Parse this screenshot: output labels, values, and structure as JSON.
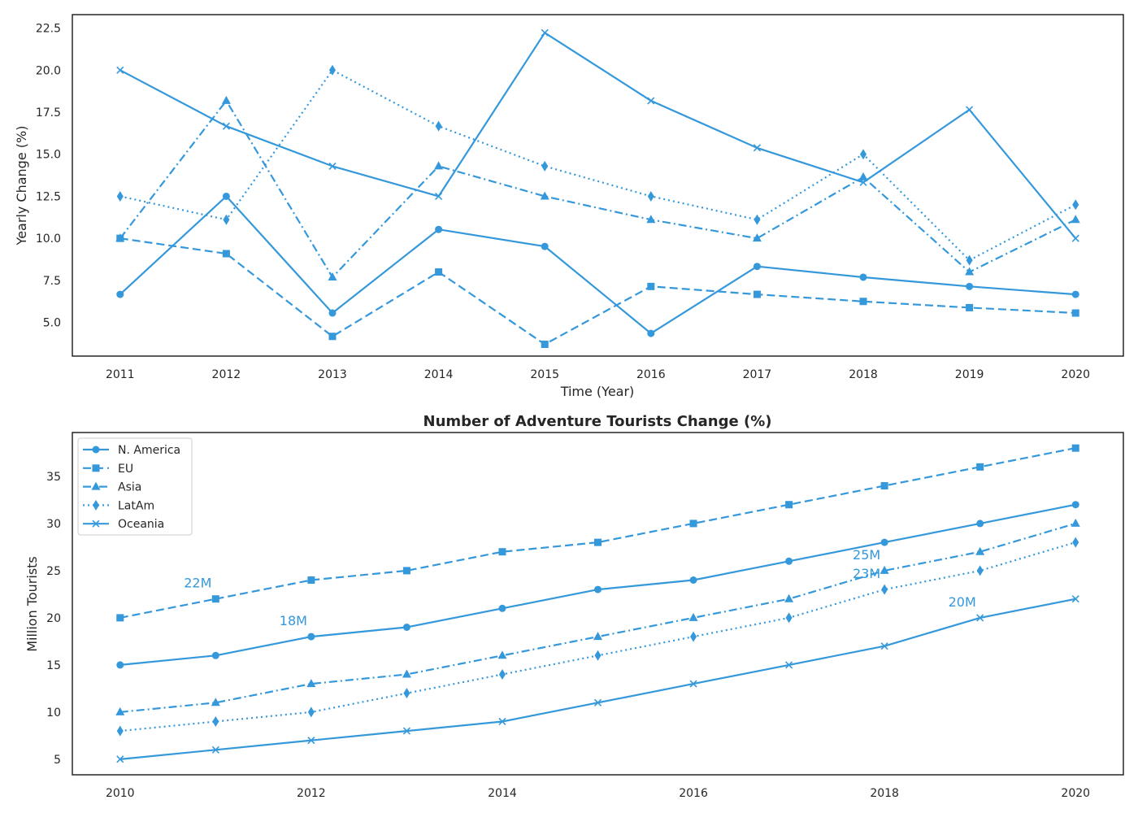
{
  "colors": {
    "line": "#3498db",
    "frame": "#262626",
    "background": "#ffffff"
  },
  "chart_data": [
    {
      "type": "line",
      "title": "",
      "xlabel": "Time (Year)",
      "ylabel": "Yearly Change (%)",
      "x": [
        2011,
        2012,
        2013,
        2014,
        2015,
        2016,
        2017,
        2018,
        2019,
        2020
      ],
      "xlim": [
        2010.55,
        2020.45
      ],
      "ylim": [
        3.0,
        23.3
      ],
      "xticks": [
        2011,
        2012,
        2013,
        2014,
        2015,
        2016,
        2017,
        2018,
        2019,
        2020
      ],
      "yticks": [
        5.0,
        7.5,
        10.0,
        12.5,
        15.0,
        17.5,
        20.0,
        22.5
      ],
      "yticklabels": [
        "5.0",
        "7.5",
        "10.0",
        "12.5",
        "15.0",
        "17.5",
        "20.0",
        "22.5"
      ],
      "grid": false,
      "series": [
        {
          "key": "na",
          "dash": "solid",
          "marker": "circle",
          "values": [
            6.67,
            12.5,
            5.56,
            10.53,
            9.52,
            4.35,
            8.33,
            7.69,
            7.14,
            6.67
          ]
        },
        {
          "key": "eu",
          "dash": "dashed",
          "marker": "square",
          "values": [
            10.0,
            9.09,
            4.17,
            8.0,
            3.7,
            7.14,
            6.67,
            6.25,
            5.88,
            5.56
          ]
        },
        {
          "key": "asia",
          "dash": "dashdot",
          "marker": "triangle",
          "values": [
            10.0,
            18.18,
            7.69,
            14.29,
            12.5,
            11.11,
            10.0,
            13.64,
            8.0,
            11.11
          ]
        },
        {
          "key": "latam",
          "dash": "dotted",
          "marker": "diamond",
          "values": [
            12.5,
            11.11,
            20.0,
            16.67,
            14.29,
            12.5,
            11.11,
            15.0,
            8.7,
            12.0
          ]
        },
        {
          "key": "oceania",
          "dash": "solid",
          "marker": "x",
          "values": [
            20.0,
            16.67,
            14.29,
            12.5,
            22.22,
            18.18,
            15.38,
            13.33,
            17.65,
            10.0
          ]
        }
      ]
    },
    {
      "type": "line",
      "title": "Number of Adventure Tourists Change (%)",
      "xlabel": "",
      "ylabel": "Million Tourists",
      "x": [
        2010,
        2011,
        2012,
        2013,
        2014,
        2015,
        2016,
        2017,
        2018,
        2019,
        2020
      ],
      "xlim": [
        2009.5,
        2020.5
      ],
      "ylim": [
        3.35,
        39.65
      ],
      "xticks": [
        2010,
        2012,
        2014,
        2016,
        2018,
        2020
      ],
      "yticks": [
        5,
        10,
        15,
        20,
        25,
        30,
        35
      ],
      "yticklabels": [
        "5",
        "10",
        "15",
        "20",
        "25",
        "30",
        "35"
      ],
      "grid": false,
      "legend_position": "top-left",
      "series": [
        {
          "key": "na",
          "name": "N. America",
          "dash": "solid",
          "marker": "circle",
          "values": [
            15,
            16,
            18,
            19,
            21,
            23,
            24,
            26,
            28,
            30,
            32
          ]
        },
        {
          "key": "eu",
          "name": "EU",
          "dash": "dashed",
          "marker": "square",
          "values": [
            20,
            22,
            24,
            25,
            27,
            28,
            30,
            32,
            34,
            36,
            38
          ]
        },
        {
          "key": "asia",
          "name": "Asia",
          "dash": "dashdot",
          "marker": "triangle",
          "values": [
            10,
            11,
            13,
            14,
            16,
            18,
            20,
            22,
            25,
            27,
            30
          ]
        },
        {
          "key": "latam",
          "name": "LatAm",
          "dash": "dotted",
          "marker": "diamond",
          "values": [
            8,
            9,
            10,
            12,
            14,
            16,
            18,
            20,
            23,
            25,
            28
          ]
        },
        {
          "key": "oceania",
          "name": "Oceania",
          "dash": "solid",
          "marker": "x",
          "values": [
            5,
            6,
            7,
            8,
            9,
            11,
            13,
            15,
            17,
            20,
            22
          ]
        }
      ],
      "annotations": [
        {
          "text": "22M",
          "x": 2011,
          "y": 22
        },
        {
          "text": "18M",
          "x": 2012,
          "y": 18
        },
        {
          "text": "25M",
          "x": 2018,
          "y": 25
        },
        {
          "text": "23M",
          "x": 2018,
          "y": 23
        },
        {
          "text": "20M",
          "x": 2019,
          "y": 20
        }
      ]
    }
  ]
}
